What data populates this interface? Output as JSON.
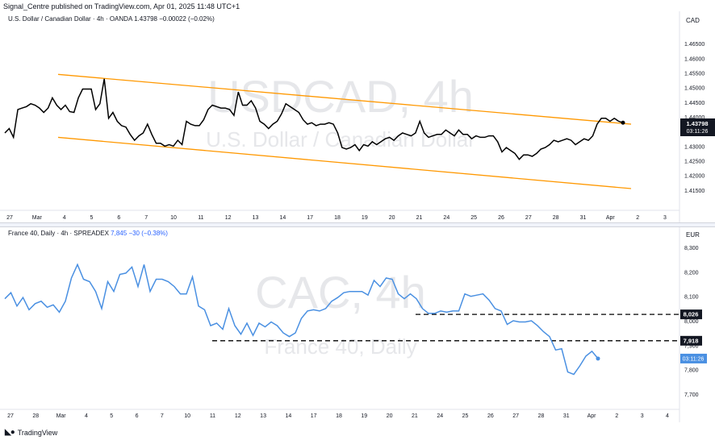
{
  "header": {
    "published": "Signal_Centre published on TradingView.com, Apr 01, 2025 11:48 UTC+1"
  },
  "footer": {
    "brand": "TradingView",
    "logo": "tradingview-logo"
  },
  "top_pane": {
    "legend_title": "U.S. Dollar / Canadian Dollar · 4h · OANDA",
    "legend_value": "1.43798",
    "legend_change": "−0.00022 (−0.02%)",
    "currency": "CAD",
    "watermark_big": "USDCAD, 4h",
    "watermark_small": "U.S. Dollar / Canadian Dollar",
    "price_badge": "1.43798",
    "countdown_badge": "03:11:26"
  },
  "bottom_pane": {
    "legend_title": "France 40, Daily · 4h · SPREADEX",
    "legend_value": "7,845",
    "legend_change": "−30 (−0.38%)",
    "currency": "EUR",
    "watermark_big": "CAC, 4h",
    "watermark_small": "France 40, Daily",
    "level_badge_1": "8,026",
    "level_badge_2": "7,918",
    "countdown_badge": "03:11:26"
  },
  "colors": {
    "channel": "#ff9800",
    "usdcad_line": "#000000",
    "cac_line": "#4a90e2",
    "dashed": "#000000"
  },
  "chart_data": [
    {
      "type": "line",
      "name": "USDCAD 4h",
      "ylim": [
        1.41,
        1.47
      ],
      "y_ticks": [
        "1.41500",
        "1.42000",
        "1.42500",
        "1.43000",
        "1.43500",
        "1.44000",
        "1.44500",
        "1.45000",
        "1.45500",
        "1.46000",
        "1.46500"
      ],
      "x_labels": [
        "27",
        "Mar",
        "4",
        "5",
        "6",
        "7",
        "10",
        "11",
        "12",
        "13",
        "14",
        "17",
        "18",
        "19",
        "20",
        "21",
        "24",
        "25",
        "26",
        "27",
        "28",
        "31",
        "Apr",
        "2",
        "3"
      ],
      "series": [
        {
          "values": [
            1.4345,
            1.436,
            1.433,
            1.4425,
            1.443,
            1.4435,
            1.4445,
            1.444,
            1.443,
            1.4415,
            1.443,
            1.4465,
            1.444,
            1.4425,
            1.444,
            1.4418,
            1.4415,
            1.4465,
            1.4495,
            1.4495,
            1.4495,
            1.4425,
            1.4445,
            1.453,
            1.4395,
            1.4415,
            1.4385,
            1.437,
            1.4365,
            1.434,
            1.432,
            1.4335,
            1.4345,
            1.4375,
            1.434,
            1.431,
            1.431,
            1.43,
            1.4305,
            1.43,
            1.432,
            1.4305,
            1.4385,
            1.4375,
            1.437,
            1.437,
            1.439,
            1.4425,
            1.444,
            1.4435,
            1.443,
            1.443,
            1.4425,
            1.4405,
            1.4485,
            1.444,
            1.444,
            1.4455,
            1.443,
            1.4385,
            1.4375,
            1.436,
            1.4375,
            1.4385,
            1.441,
            1.4445,
            1.4435,
            1.4425,
            1.4415,
            1.439,
            1.4375,
            1.438,
            1.437,
            1.4375,
            1.4375,
            1.438,
            1.4375,
            1.4345,
            1.4295,
            1.429,
            1.4295,
            1.4305,
            1.4285,
            1.4305,
            1.43,
            1.4315,
            1.4305,
            1.4315,
            1.4325,
            1.433,
            1.432,
            1.4335,
            1.4345,
            1.434,
            1.4335,
            1.4345,
            1.4385,
            1.4345,
            1.433,
            1.4335,
            1.434,
            1.434,
            1.4355,
            1.4345,
            1.4335,
            1.4355,
            1.434,
            1.434,
            1.4325,
            1.4335,
            1.433,
            1.433,
            1.4335,
            1.4335,
            1.4315,
            1.428,
            1.4295,
            1.4285,
            1.4275,
            1.4255,
            1.427,
            1.427,
            1.4265,
            1.4275,
            1.429,
            1.4295,
            1.4305,
            1.432,
            1.4315,
            1.432,
            1.4325,
            1.432,
            1.4305,
            1.4315,
            1.4325,
            1.432,
            1.4335,
            1.4375,
            1.4395,
            1.4395,
            1.4385,
            1.4395,
            1.4385,
            1.438
          ]
        }
      ],
      "channel": {
        "upper": [
          1.4545,
          1.4375
        ],
        "lower": [
          1.433,
          1.4155
        ]
      }
    },
    {
      "type": "line",
      "name": "CAC 4h",
      "ylim": [
        7650,
        8350
      ],
      "y_ticks": [
        "7,700",
        "7,800",
        "7,900",
        "8,000",
        "8,100",
        "8,200",
        "8,300"
      ],
      "x_labels": [
        "27",
        "28",
        "Mar",
        "4",
        "5",
        "6",
        "7",
        "10",
        "11",
        "12",
        "13",
        "14",
        "17",
        "18",
        "19",
        "20",
        "21",
        "24",
        "25",
        "26",
        "27",
        "28",
        "31",
        "Apr",
        "2",
        "3",
        "4"
      ],
      "series": [
        {
          "values": [
            8090,
            8115,
            8060,
            8095,
            8045,
            8070,
            8080,
            8055,
            8065,
            8035,
            8080,
            8175,
            8230,
            8170,
            8160,
            8120,
            8050,
            8160,
            8120,
            8190,
            8195,
            8220,
            8140,
            8230,
            8120,
            8170,
            8170,
            8160,
            8140,
            8110,
            8110,
            8180,
            8060,
            8045,
            7980,
            7990,
            7965,
            8050,
            7980,
            7945,
            7990,
            7940,
            7990,
            7975,
            7995,
            7980,
            7950,
            7935,
            7950,
            8010,
            8040,
            8045,
            8040,
            8050,
            8080,
            8095,
            8115,
            8120,
            8120,
            8120,
            8105,
            8165,
            8140,
            8175,
            8170,
            8110,
            8090,
            8110,
            8090,
            8050,
            8030,
            8030,
            8040,
            8035,
            8040,
            8040,
            8110,
            8100,
            8105,
            8110,
            8085,
            8050,
            8040,
            7985,
            8000,
            7995,
            7995,
            8000,
            7980,
            7955,
            7935,
            7880,
            7885,
            7790,
            7780,
            7815,
            7855,
            7875,
            7845
          ]
        }
      ],
      "levels": [
        8026,
        7918
      ]
    }
  ]
}
